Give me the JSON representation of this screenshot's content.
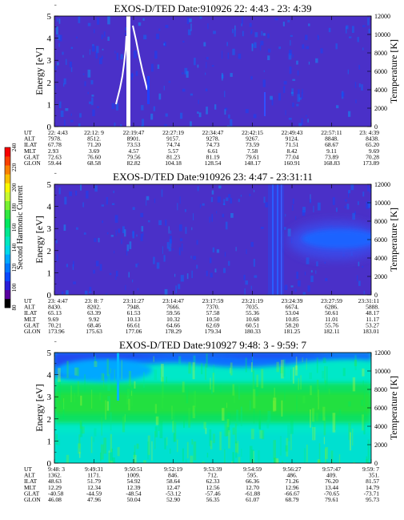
{
  "colorbar": {
    "label": "Second Harmonic Current",
    "ticks": [
      "240",
      "220",
      "200",
      "180",
      "160",
      "140",
      "120",
      "100",
      "80"
    ],
    "colors": [
      "#000000",
      "#5a00a0",
      "#2a1ed8",
      "#0a48ff",
      "#0078ff",
      "#00a8ff",
      "#00d8e8",
      "#00e8c0",
      "#00e890",
      "#00e860",
      "#30e840",
      "#78f030",
      "#c8f830",
      "#f8f800",
      "#f8c000",
      "#f88000",
      "#f84000",
      "#f80000"
    ]
  },
  "chart_data": [
    {
      "type": "heatmap",
      "title": "EXOS-D/TED   Date:910926  22: 4:43 - 23: 4:39",
      "ylabel": "Energy [eV]",
      "y2label": "Temperature [K]",
      "ylim": [
        0,
        5
      ],
      "y2lim": [
        0,
        12000
      ],
      "yticks": [
        "0",
        "1",
        "2",
        "3",
        "4",
        "5"
      ],
      "y2ticks": [
        "0",
        "2000",
        "4000",
        "6000",
        "8000",
        "10000",
        "12000"
      ],
      "background_level": 115,
      "ephemeris": {
        "labels": [
          "UT",
          "ALT",
          "ILAT",
          "MLT",
          "GLAT",
          "GLON"
        ],
        "columns": [
          [
            "22: 4:43",
            "7978.",
            "67.78",
            "2.93",
            "72.63",
            "59.44"
          ],
          [
            "22:12: 9",
            "8512.",
            "71.20",
            "3.69",
            "76.60",
            "68.58"
          ],
          [
            "22:19:47",
            "8901.",
            "73.53",
            "4.57",
            "79.56",
            "82.82"
          ],
          [
            "22:27:19",
            "9157.",
            "74.74",
            "5.57",
            "81.23",
            "104.18"
          ],
          [
            "22:34:47",
            "9278.",
            "74.73",
            "6.61",
            "81.19",
            "128.54"
          ],
          [
            "22:42:15",
            "9267.",
            "73.59",
            "7.58",
            "79.61",
            "148.17"
          ],
          [
            "22:49:43",
            "9124.",
            "71.51",
            "8.42",
            "77.04",
            "160.91"
          ],
          [
            "22:57:11",
            "8848.",
            "68.67",
            "9.11",
            "73.89",
            "168.83"
          ],
          [
            "23: 4:39",
            "8438.",
            "65.20",
            "9.69",
            "70.28",
            "173.89"
          ]
        ]
      }
    },
    {
      "type": "heatmap",
      "title": "EXOS-D/TED   Date:910926  23: 4:47 - 23:31:11",
      "ylabel": "Energy [eV]",
      "y2label": "Temperature [K]",
      "ylim": [
        0,
        5
      ],
      "y2lim": [
        0,
        12000
      ],
      "yticks": [
        "0",
        "1",
        "2",
        "3",
        "4",
        "5"
      ],
      "y2ticks": [
        "0",
        "2000",
        "4000",
        "6000",
        "8000",
        "10000",
        "12000"
      ],
      "background_level": 115,
      "ephemeris": {
        "labels": [
          "UT",
          "ALT",
          "ILAT",
          "MLT",
          "GLAT",
          "GLON"
        ],
        "columns": [
          [
            "23: 4:47",
            "8430.",
            "65.13",
            "9.69",
            "70.21",
            "173.96"
          ],
          [
            "23: 8: 7",
            "8202.",
            "63.39",
            "9.92",
            "68.46",
            "175.63"
          ],
          [
            "23:11:27",
            "7948.",
            "61.53",
            "10.13",
            "66.61",
            "177.06"
          ],
          [
            "23:14:47",
            "7666.",
            "59.56",
            "10.32",
            "64.66",
            "178.29"
          ],
          [
            "23:17:59",
            "7370.",
            "57.58",
            "10.50",
            "62.69",
            "179.34"
          ],
          [
            "23:21:19",
            "7035.",
            "55.36",
            "10.68",
            "60.51",
            "180.33"
          ],
          [
            "23:24:39",
            "6674.",
            "53.04",
            "10.85",
            "58.20",
            "181.25"
          ],
          [
            "23:27:59",
            "6286.",
            "50.61",
            "11.01",
            "55.76",
            "182.11"
          ],
          [
            "23:31:11",
            "5888.",
            "48.17",
            "11.17",
            "53.27",
            "183.01"
          ]
        ]
      }
    },
    {
      "type": "heatmap",
      "title": "EXOS-D/TED   Date:910927  9:48: 3 - 9:59: 7",
      "ylabel": "Energy [eV]",
      "y2label": "Temperature [K]",
      "ylim": [
        0,
        5
      ],
      "y2lim": [
        0,
        12000
      ],
      "yticks": [
        "0",
        "1",
        "2",
        "3",
        "4",
        "5"
      ],
      "y2ticks": [
        "0",
        "2000",
        "4000",
        "6000",
        "8000",
        "10000",
        "12000"
      ],
      "background_level": 175,
      "ephemeris": {
        "labels": [
          "UT",
          "ALT",
          "ILAT",
          "MLT",
          "GLAT",
          "GLON"
        ],
        "columns": [
          [
            "9:48: 3",
            "1362.",
            "48.63",
            "12.29",
            "-40.58",
            "46.08"
          ],
          [
            "9:49:31",
            "1171.",
            "51.79",
            "12.34",
            "-44.59",
            "47.96"
          ],
          [
            "9:50:51",
            "1009.",
            "54.92",
            "12.39",
            "-48.54",
            "50.04"
          ],
          [
            "9:52:19",
            "846.",
            "58.64",
            "12.47",
            "-53.12",
            "52.90"
          ],
          [
            "9:53:39",
            "712.",
            "62.33",
            "12.56",
            "-57.46",
            "56.35"
          ],
          [
            "9:54:59",
            "595.",
            "66.36",
            "12.70",
            "-61.88",
            "61.07"
          ],
          [
            "9:56:27",
            "486.",
            "71.26",
            "12.96",
            "-66.67",
            "68.79"
          ],
          [
            "9:57:47",
            "409.",
            "76.20",
            "13.44",
            "-70.65",
            "79.61"
          ],
          [
            "9:59: 7",
            "351.",
            "81.57",
            "14.79",
            "-73.71",
            "95.73"
          ]
        ]
      }
    }
  ]
}
